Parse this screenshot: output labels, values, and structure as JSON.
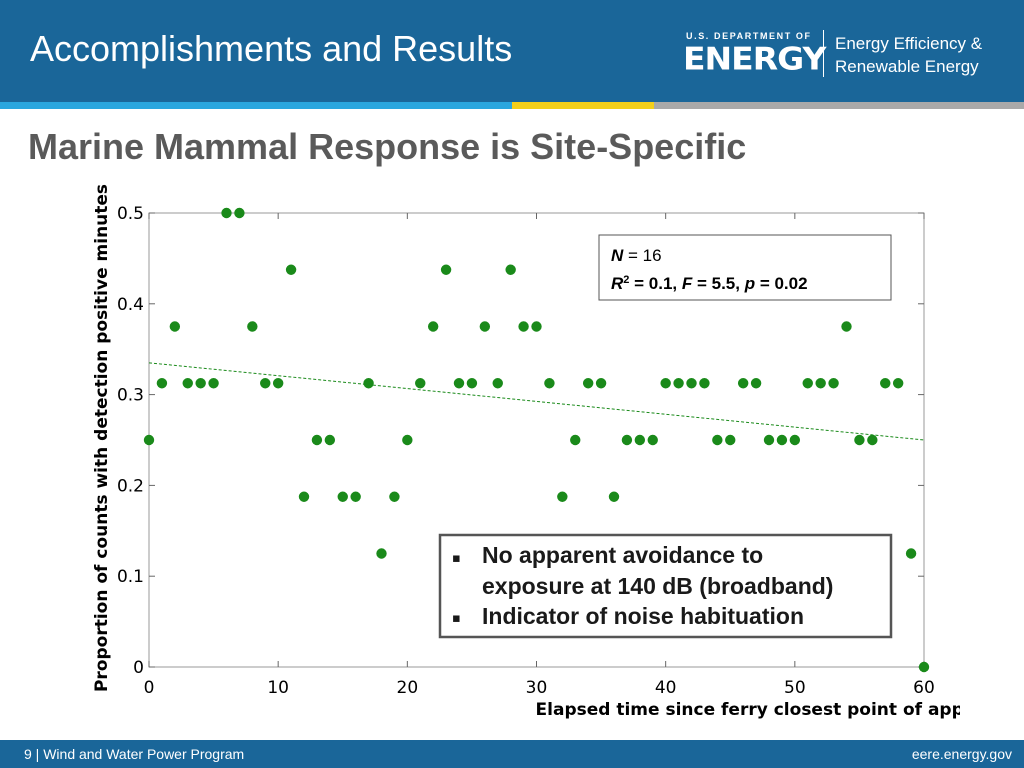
{
  "header": {
    "title": "Accomplishments and Results",
    "logo_small": "U.S. DEPARTMENT OF",
    "logo_big": "ENERGY",
    "office_line1": "Energy Efficiency &",
    "office_line2": "Renewable Energy"
  },
  "slide_title": "Marine Mammal Response is Site-Specific",
  "stats_box": {
    "n_var": "N",
    "n_rest": " = 16",
    "r_var": "R",
    "r_sup": "2",
    "r_rest": " = 0.1, ",
    "f_var": "F",
    "f_rest": " = 5.5, ",
    "p_var": "p",
    "p_rest": " = 0.02"
  },
  "notes": {
    "bullet": "▪",
    "line1": "No apparent avoidance to",
    "line2": "exposure at 140 dB (broadband)",
    "line3": "Indicator of noise habituation"
  },
  "footer": {
    "left": "9 | Wind and Water Power Program",
    "right": "eere.energy.gov"
  },
  "chart_data": {
    "type": "scatter",
    "xlabel": "Elapsed time since ferry closest point of approach (minutes)",
    "ylabel": "Proportion of counts with detection positive minutes",
    "xlim": [
      0,
      60
    ],
    "ylim": [
      0,
      0.5
    ],
    "xticks": [
      0,
      10,
      20,
      30,
      40,
      50,
      60
    ],
    "yticks": [
      0,
      0.1,
      0.2,
      0.3,
      0.4,
      0.5
    ],
    "ytick_labels": [
      "0",
      "0.1",
      "0.2",
      "0.3",
      "0.4",
      "0.5"
    ],
    "x": [
      0,
      1,
      2,
      3,
      4,
      5,
      6,
      7,
      8,
      9,
      10,
      11,
      12,
      13,
      14,
      15,
      16,
      17,
      18,
      19,
      20,
      21,
      22,
      23,
      24,
      25,
      26,
      27,
      28,
      29,
      30,
      31,
      32,
      33,
      34,
      35,
      36,
      37,
      38,
      39,
      40,
      41,
      42,
      43,
      44,
      45,
      46,
      47,
      48,
      49,
      50,
      51,
      52,
      53,
      54,
      55,
      56,
      57,
      58,
      59,
      60
    ],
    "y": [
      0.25,
      0.3125,
      0.375,
      0.3125,
      0.3125,
      0.3125,
      0.5,
      0.5,
      0.375,
      0.3125,
      0.3125,
      0.4375,
      0.1875,
      0.25,
      0.25,
      0.1875,
      0.1875,
      0.3125,
      0.125,
      0.1875,
      0.25,
      0.3125,
      0.375,
      0.4375,
      0.3125,
      0.3125,
      0.375,
      0.3125,
      0.4375,
      0.375,
      0.375,
      0.3125,
      0.1875,
      0.25,
      0.3125,
      0.3125,
      0.1875,
      0.25,
      0.25,
      0.25,
      0.3125,
      0.3125,
      0.3125,
      0.3125,
      0.25,
      0.25,
      0.3125,
      0.3125,
      0.25,
      0.25,
      0.25,
      0.3125,
      0.3125,
      0.3125,
      0.375,
      0.25,
      0.25,
      0.3125,
      0.3125,
      0.125,
      0
    ],
    "trendline": {
      "x": [
        0,
        60
      ],
      "y": [
        0.335,
        0.25
      ]
    },
    "point_color": "#1a8a1a",
    "trend_color": "#1a8a1a",
    "grid": false
  }
}
